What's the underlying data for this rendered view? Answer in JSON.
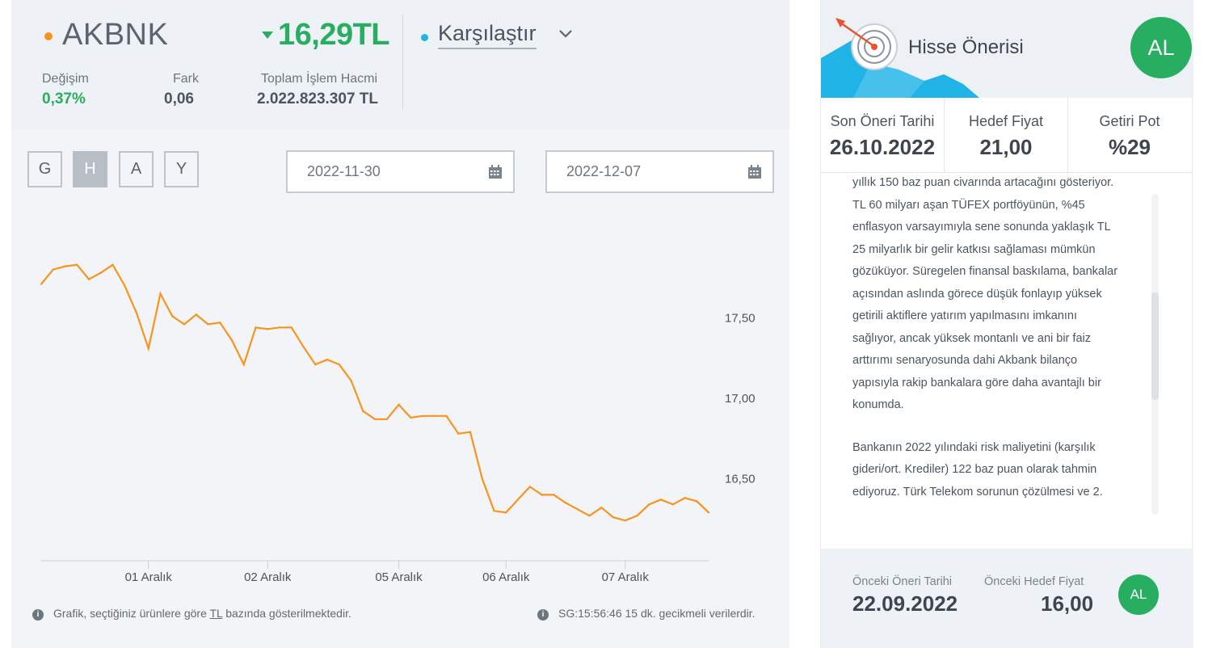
{
  "header": {
    "symbol": "AKBNK",
    "price": "16,29TL",
    "compare_label": "Karşılaştır",
    "change_label": "Değişim",
    "change_value": "0,37%",
    "diff_label": "Fark",
    "diff_value": "0,06",
    "volume_label": "Toplam İşlem Hacmi",
    "volume_value": "2.022.823.307 TL",
    "colors": {
      "symbol_dot": "#f7941d",
      "up": "#27ae60",
      "compare_dot": "#1fb3e6"
    }
  },
  "period_buttons": [
    {
      "label": "G",
      "active": false
    },
    {
      "label": "H",
      "active": true
    },
    {
      "label": "A",
      "active": false
    },
    {
      "label": "Y",
      "active": false
    }
  ],
  "date_range": {
    "start": "2022-11-30",
    "end": "2022-12-07"
  },
  "chart_data": {
    "type": "line",
    "title": "",
    "xlabel": "",
    "ylabel": "",
    "x_tick_labels": [
      "01 Aralık",
      "02 Aralık",
      "05 Aralık",
      "06 Aralık",
      "07 Aralık"
    ],
    "x_tick_positions": [
      9,
      19,
      30,
      39,
      49
    ],
    "y_ticks": [
      16.5,
      17.0,
      17.5
    ],
    "y_tick_labels": [
      "16,50",
      "17,00",
      "17,50"
    ],
    "ylim": [
      15.99,
      18.22
    ],
    "grid": false,
    "line_color": "#f7941d",
    "series": [
      {
        "values": [
          17.71,
          17.8,
          17.82,
          17.83,
          17.74,
          17.78,
          17.83,
          17.7,
          17.53,
          17.31,
          17.65,
          17.51,
          17.46,
          17.52,
          17.46,
          17.47,
          17.36,
          17.21,
          17.44,
          17.43,
          17.44,
          17.44,
          17.32,
          17.21,
          17.24,
          17.21,
          17.11,
          16.92,
          16.87,
          16.87,
          16.96,
          16.88,
          16.89,
          16.89,
          16.89,
          16.78,
          16.79,
          16.5,
          16.3,
          16.29,
          16.37,
          16.45,
          16.4,
          16.4,
          16.35,
          16.31,
          16.27,
          16.32,
          16.26,
          16.24,
          16.27,
          16.34,
          16.37,
          16.34,
          16.38,
          16.36,
          16.29
        ]
      }
    ]
  },
  "footer": {
    "note_prefix": "Grafik, seçtiğiniz ürünlere göre ",
    "note_unit": "TL",
    "note_suffix": " bazında gösterilmektedir.",
    "delay_note": "SG:15:56:46 15 dk. gecikmeli verilerdir."
  },
  "recommendation": {
    "title": "Hisse Önerisi",
    "badge": "AL",
    "colors": {
      "badge": "#27ae60",
      "banner_blue": "#1fb3e6"
    },
    "stats": [
      {
        "label": "Son Öneri Tarihi",
        "value": "26.10.2022"
      },
      {
        "label": "Hedef Fiyat",
        "value": "21,00"
      },
      {
        "label": "Getiri Pot",
        "value": "%29"
      }
    ],
    "text_lines_1": [
      "yıllık 150 baz puan civarında artacağını gösteriyor.",
      "TL 60 milyarı aşan TÜFEX portföyünün, %45",
      "enflasyon varsayımıyla sene sonunda yaklaşık TL",
      "25 milyarlık bir gelir katkısı sağlaması mümkün",
      "gözüküyor. Süregelen finansal baskılama, bankalar",
      "açısından aslında görece düşük fonlayıp yüksek",
      "getirili aktiflere yatırım yapılmasını imkanını",
      "sağlıyor, ancak yüksek montanlı ve ani bir faiz",
      "arttırımı senaryosunda dahi Akbank bilanço",
      "yapısıyla rakip bankalara göre daha avantajlı bir",
      "konumda."
    ],
    "text_lines_2": [
      "Bankanın 2022 yılındaki risk maliyetini (karşılık",
      "gideri/ort. Krediler) 122 baz puan olarak tahmin",
      "ediyoruz. Türk Telekom sorunun çözülmesi ve 2."
    ],
    "previous": {
      "date_label": "Önceki Öneri Tarihi",
      "date_value": "22.09.2022",
      "target_label": "Önceki Hedef Fiyat",
      "target_value": "16,00",
      "badge": "AL"
    }
  }
}
